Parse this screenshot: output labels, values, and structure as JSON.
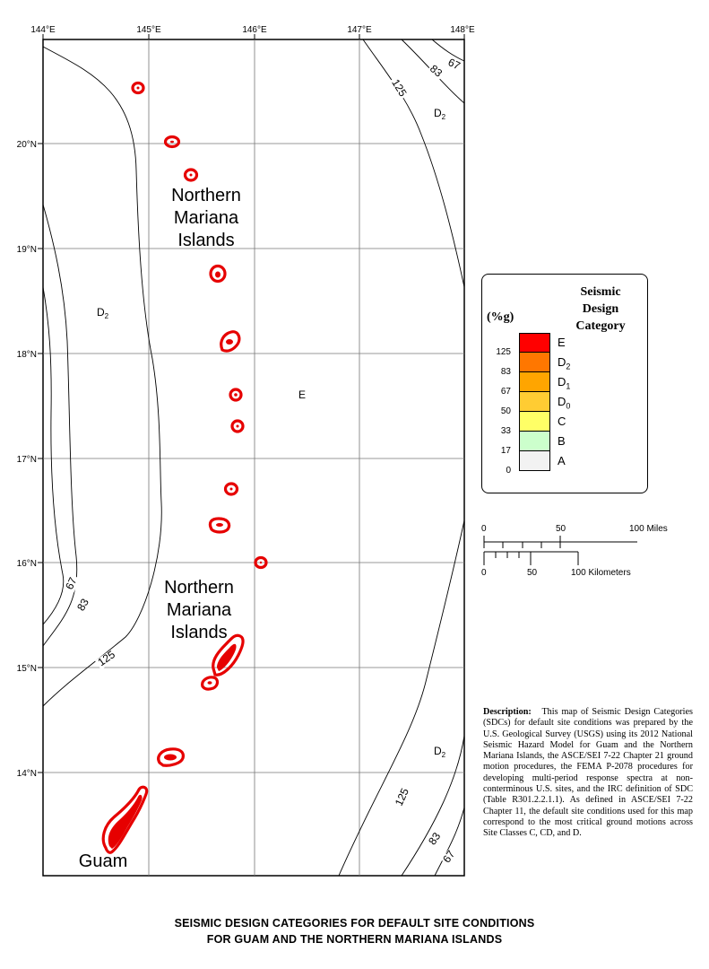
{
  "map": {
    "lon_labels": [
      "144°E",
      "145°E",
      "146°E",
      "147°E",
      "148°E"
    ],
    "lat_labels": [
      "20°N",
      "19°N",
      "18°N",
      "17°N",
      "16°N",
      "15°N",
      "14°N"
    ],
    "contour_labels": [
      "67",
      "83",
      "125"
    ],
    "region_labels": {
      "nmi_upper_line1": "Northern",
      "nmi_upper_line2": "Mariana",
      "nmi_upper_line3": "Islands",
      "nmi_lower_line1": "Northern",
      "nmi_lower_line2": "Mariana",
      "nmi_lower_line3": "Islands",
      "guam": "Guam"
    },
    "zone_labels": {
      "d2_base": "D",
      "d2_sub": "2",
      "e": "E"
    },
    "colors": {
      "E": "#ff0000",
      "D2": "#ff7700",
      "D1": "#ffa500",
      "D0": "#ffcc33",
      "C": "#ffff66",
      "B": "#ccffcc",
      "A": "#f2f2f2",
      "island_ring": "#e60000"
    }
  },
  "legend": {
    "title_line1": "Seismic",
    "title_line2": "Design",
    "title_line3": "Category",
    "unit": "(%g)",
    "breaks": [
      "125",
      "83",
      "67",
      "50",
      "33",
      "17",
      "0"
    ],
    "categories": [
      {
        "base": "E",
        "sub": "",
        "color": "#ff0000"
      },
      {
        "base": "D",
        "sub": "2",
        "color": "#ff7700"
      },
      {
        "base": "D",
        "sub": "1",
        "color": "#ffa500"
      },
      {
        "base": "D",
        "sub": "0",
        "color": "#ffcc33"
      },
      {
        "base": "C",
        "sub": "",
        "color": "#ffff66"
      },
      {
        "base": "B",
        "sub": "",
        "color": "#ccffcc"
      },
      {
        "base": "A",
        "sub": "",
        "color": "#f2f2f2"
      }
    ]
  },
  "scale": {
    "miles_labels": [
      "0",
      "50",
      "100 Miles"
    ],
    "km_labels": [
      "0",
      "50",
      "100 Kilometers"
    ]
  },
  "description": {
    "label": "Description:",
    "text": "This map of Seismic Design Categories (SDCs) for default site conditions was prepared by the U.S. Geological Survey (USGS) using its 2012 National Seismic Hazard Model for Guam and the Northern Mariana Islands, the ASCE/SEI 7-22 Chapter 21 ground motion procedures, the FEMA P-2078 procedures for developing multi-period response spectra at non-conterminous U.S. sites, and the IRC definition of SDC (Table R301.2.2.1.1). As defined in ASCE/SEI 7-22 Chapter 11, the default site conditions used for this map correspond to the most critical ground motions across Site Classes C, CD, and D."
  },
  "title": {
    "line1": "SEISMIC DESIGN CATEGORIES FOR DEFAULT SITE CONDITIONS",
    "line2": "FOR GUAM AND THE NORTHERN MARIANA ISLANDS"
  }
}
